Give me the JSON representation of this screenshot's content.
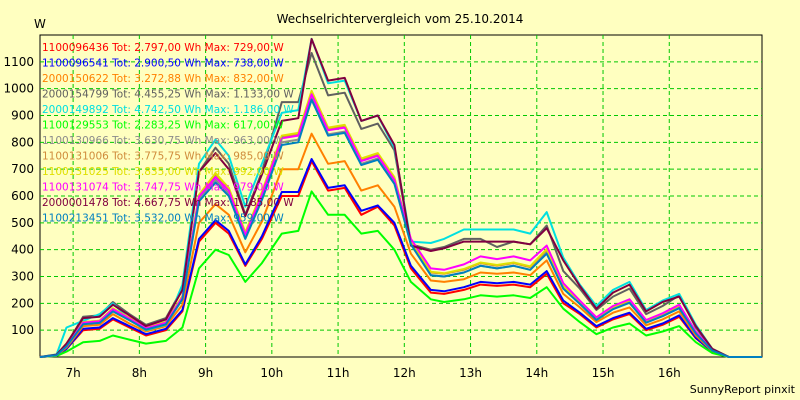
{
  "chart_data": {
    "type": "line",
    "title": "Wechselrichtervergleich vom 25.10.2014",
    "ylabel": "W",
    "xlabel": "",
    "footer": "SunnyReport pinxit",
    "grid": true,
    "legend_position": "top-left",
    "ylim": [
      0,
      1200
    ],
    "yticks": [
      100,
      200,
      300,
      400,
      500,
      600,
      700,
      800,
      900,
      1000,
      1100
    ],
    "xlim": [
      6.5,
      17.4
    ],
    "xticks": [
      {
        "value": 7,
        "label": "7h"
      },
      {
        "value": 8,
        "label": "8h"
      },
      {
        "value": 9,
        "label": "9h"
      },
      {
        "value": 10,
        "label": "10h"
      },
      {
        "value": 11,
        "label": "11h"
      },
      {
        "value": 12,
        "label": "12h"
      },
      {
        "value": 13,
        "label": "13h"
      },
      {
        "value": 14,
        "label": "14h"
      },
      {
        "value": 15,
        "label": "15h"
      },
      {
        "value": 16,
        "label": "16h"
      }
    ],
    "x": [
      6.5,
      6.75,
      6.9,
      7.15,
      7.4,
      7.6,
      7.85,
      8.1,
      8.4,
      8.65,
      8.9,
      9.15,
      9.35,
      9.6,
      9.85,
      10.15,
      10.4,
      10.6,
      10.85,
      11.1,
      11.35,
      11.6,
      11.85,
      12.1,
      12.4,
      12.6,
      12.9,
      13.15,
      13.4,
      13.65,
      13.9,
      14.15,
      14.4,
      14.65,
      14.9,
      15.15,
      15.4,
      15.65,
      15.9,
      16.15,
      16.4,
      16.65,
      16.9,
      17.1,
      17.4
    ],
    "series": [
      {
        "name": "1100096436",
        "label": "1100096436 Tot: 2.797,00 Wh Max: 729,00 W",
        "color": "#ff0000",
        "values": [
          0,
          5,
          30,
          100,
          105,
          140,
          110,
          80,
          100,
          170,
          430,
          500,
          460,
          340,
          440,
          600,
          600,
          730,
          620,
          630,
          530,
          560,
          490,
          330,
          240,
          235,
          250,
          270,
          265,
          270,
          260,
          310,
          200,
          160,
          110,
          140,
          160,
          100,
          120,
          150,
          70,
          20,
          0,
          0,
          0
        ]
      },
      {
        "name": "1100096541",
        "label": "1100096541 Tot: 2.900,50 Wh Max: 738,00 W",
        "color": "#0000ff",
        "values": [
          0,
          5,
          30,
          105,
          110,
          145,
          115,
          85,
          105,
          175,
          440,
          510,
          470,
          345,
          450,
          615,
          615,
          738,
          630,
          640,
          545,
          565,
          500,
          340,
          250,
          245,
          260,
          280,
          275,
          280,
          270,
          320,
          210,
          165,
          115,
          145,
          165,
          105,
          125,
          155,
          72,
          20,
          0,
          0,
          0
        ]
      },
      {
        "name": "2000150622",
        "label": "2000150622 Tot: 3.272,88 Wh Max: 832,00 W",
        "color": "#ff8000",
        "values": [
          0,
          6,
          35,
          115,
          120,
          160,
          125,
          95,
          115,
          195,
          500,
          570,
          530,
          390,
          505,
          700,
          700,
          832,
          720,
          730,
          620,
          640,
          560,
          385,
          285,
          280,
          290,
          315,
          310,
          315,
          305,
          360,
          235,
          185,
          130,
          165,
          185,
          118,
          140,
          170,
          80,
          22,
          0,
          0,
          0
        ]
      },
      {
        "name": "2000154799",
        "label": "2000154799 Tot: 4.455,25 Wh Max: 1.133,00 W",
        "color": "#606060",
        "values": [
          0,
          8,
          45,
          150,
          155,
          205,
          160,
          120,
          145,
          255,
          690,
          780,
          720,
          530,
          690,
          950,
          950,
          1133,
          975,
          985,
          850,
          870,
          770,
          420,
          400,
          410,
          440,
          440,
          410,
          430,
          420,
          490,
          320,
          255,
          175,
          225,
          255,
          160,
          190,
          230,
          110,
          30,
          0,
          0,
          0
        ]
      },
      {
        "name": "2000149892",
        "label": "2000149892 Tot: 4.742,50 Wh Max: 1.186,00 W",
        "color": "#00e0e0",
        "values": [
          0,
          10,
          110,
          135,
          160,
          200,
          140,
          100,
          120,
          270,
          720,
          810,
          750,
          560,
          720,
          910,
          920,
          1186,
          1020,
          1030,
          880,
          900,
          780,
          430,
          425,
          440,
          475,
          475,
          475,
          475,
          460,
          540,
          370,
          270,
          190,
          250,
          280,
          175,
          210,
          235,
          120,
          30,
          0,
          0,
          0
        ]
      },
      {
        "name": "1100129553",
        "label": "1100129553 Tot: 2.283,25 Wh Max: 617,00 W",
        "color": "#00ff00",
        "values": [
          0,
          4,
          20,
          55,
          60,
          80,
          65,
          50,
          60,
          110,
          330,
          400,
          380,
          280,
          350,
          460,
          470,
          617,
          530,
          530,
          460,
          470,
          400,
          280,
          215,
          205,
          215,
          230,
          225,
          230,
          220,
          260,
          180,
          130,
          85,
          110,
          125,
          80,
          95,
          115,
          55,
          15,
          0,
          0,
          0
        ]
      },
      {
        "name": "1100130966",
        "label": "1100130966 Tot: 3.630,75 Wh Max: 963,00 W",
        "color": "#8c8c8c",
        "values": [
          0,
          7,
          40,
          125,
          130,
          175,
          140,
          105,
          125,
          220,
          590,
          660,
          610,
          450,
          590,
          800,
          810,
          963,
          830,
          840,
          720,
          740,
          650,
          420,
          305,
          300,
          315,
          340,
          330,
          340,
          325,
          390,
          255,
          200,
          140,
          180,
          205,
          130,
          155,
          185,
          90,
          25,
          0,
          0,
          0
        ]
      },
      {
        "name": "1100131006",
        "label": "1100131006 Tot: 3.775,75 Wh Max: 985,00 W",
        "color": "#d08c3c",
        "values": [
          0,
          7,
          40,
          130,
          135,
          180,
          145,
          108,
          130,
          225,
          600,
          680,
          625,
          460,
          610,
          820,
          830,
          985,
          850,
          860,
          735,
          755,
          665,
          430,
          315,
          310,
          325,
          350,
          340,
          350,
          335,
          400,
          262,
          205,
          145,
          185,
          210,
          135,
          160,
          190,
          92,
          25,
          0,
          0,
          0
        ]
      },
      {
        "name": "1100131025",
        "label": "1100131025 Tot: 3.835,00 Wh Max: 992,00 W",
        "color": "#e0e000",
        "values": [
          0,
          7,
          40,
          130,
          135,
          182,
          146,
          109,
          131,
          227,
          605,
          685,
          630,
          465,
          615,
          825,
          835,
          992,
          855,
          865,
          740,
          760,
          670,
          435,
          318,
          312,
          328,
          352,
          343,
          352,
          338,
          402,
          264,
          207,
          146,
          186,
          212,
          136,
          161,
          192,
          93,
          25,
          0,
          0,
          0
        ]
      },
      {
        "name": "1100131074",
        "label": "1100131074 Tot: 3.747,75 Wh Max: 979,00 W",
        "color": "#ff00ff",
        "values": [
          0,
          7,
          40,
          128,
          133,
          178,
          143,
          107,
          128,
          222,
          598,
          670,
          620,
          455,
          605,
          815,
          825,
          979,
          845,
          855,
          730,
          750,
          660,
          440,
          330,
          325,
          345,
          375,
          365,
          375,
          360,
          415,
          275,
          210,
          148,
          190,
          215,
          138,
          163,
          195,
          95,
          25,
          0,
          0,
          0
        ]
      },
      {
        "name": "2000001478",
        "label": "2000001478 Tot: 4.667,75 Wh Max: 1.185,00 W",
        "color": "#800040",
        "values": [
          0,
          9,
          50,
          145,
          150,
          195,
          155,
          115,
          140,
          250,
          690,
          760,
          700,
          525,
          680,
          880,
          890,
          1185,
          1030,
          1040,
          880,
          900,
          790,
          415,
          395,
          405,
          430,
          430,
          430,
          430,
          420,
          480,
          360,
          265,
          180,
          240,
          270,
          170,
          205,
          225,
          115,
          30,
          0,
          0,
          0
        ]
      },
      {
        "name": "1100213451",
        "label": "1100213451 Tot: 3.532,00 Wh Max: 959,00 W",
        "color": "#0080c0",
        "values": [
          0,
          7,
          40,
          122,
          127,
          170,
          137,
          102,
          122,
          215,
          580,
          650,
          600,
          440,
          585,
          790,
          800,
          959,
          825,
          835,
          715,
          735,
          645,
          420,
          305,
          300,
          315,
          340,
          330,
          340,
          325,
          385,
          255,
          198,
          138,
          178,
          202,
          128,
          152,
          182,
          88,
          24,
          0,
          0,
          0
        ]
      }
    ]
  }
}
